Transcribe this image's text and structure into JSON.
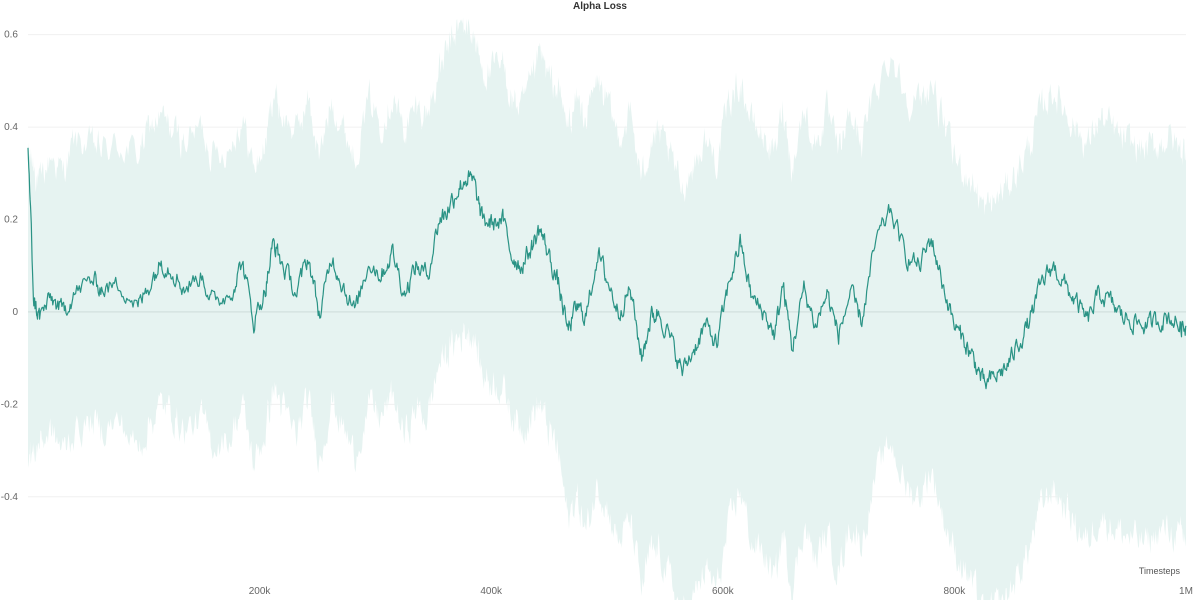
{
  "chart_data": {
    "type": "area",
    "title": "Alpha Loss",
    "xlabel": "Timesteps",
    "ylabel": "",
    "xlim": [
      0,
      1000000
    ],
    "ylim": [
      -0.565,
      0.675
    ],
    "grid": true,
    "legend": "none",
    "x_ticks": [
      {
        "value": 200000,
        "label": "200k"
      },
      {
        "value": 400000,
        "label": "400k"
      },
      {
        "value": 600000,
        "label": "600k"
      },
      {
        "value": 800000,
        "label": "800k"
      },
      {
        "value": 1000000,
        "label": "1M"
      }
    ],
    "y_ticks": [
      {
        "value": 0.6,
        "label": "0.6"
      },
      {
        "value": 0.4,
        "label": "0.4"
      },
      {
        "value": 0.2,
        "label": "0.2"
      },
      {
        "value": 0,
        "label": "0"
      },
      {
        "value": -0.2,
        "label": "-0.2"
      },
      {
        "value": -0.4,
        "label": "-0.4"
      }
    ],
    "series": [
      {
        "color": "#2a9385",
        "band_color": "#e6f3f1",
        "x": [
          0,
          5000,
          10000,
          20000,
          30000,
          40000,
          55000,
          65000,
          80000,
          95000,
          105000,
          115000,
          125000,
          135000,
          150000,
          160000,
          175000,
          185000,
          195000,
          205000,
          212000,
          220000,
          232000,
          242000,
          252000,
          262000,
          272000,
          282000,
          295000,
          305000,
          315000,
          325000,
          335000,
          345000,
          355000,
          362000,
          370000,
          378000,
          385000,
          392000,
          400000,
          410000,
          418000,
          426000,
          435000,
          442000,
          450000,
          458000,
          466000,
          474000,
          482000,
          492000,
          500000,
          510000,
          520000,
          530000,
          538000,
          545000,
          555000,
          565000,
          575000,
          585000,
          595000,
          605000,
          615000,
          625000,
          635000,
          645000,
          652000,
          660000,
          670000,
          680000,
          690000,
          700000,
          710000,
          720000,
          732000,
          745000,
          758000,
          770000,
          780000,
          790000,
          800000,
          810000,
          818000,
          826000,
          835000,
          845000,
          855000,
          865000,
          875000,
          885000,
          895000,
          905000,
          915000,
          925000,
          935000,
          945000,
          955000,
          965000,
          975000,
          985000,
          995000,
          1000000
        ],
        "y": [
          0.36,
          0.02,
          -0.01,
          0.03,
          0.0,
          0.04,
          0.07,
          0.05,
          0.06,
          0.01,
          0.06,
          0.11,
          0.09,
          0.05,
          0.08,
          0.02,
          0.04,
          0.11,
          -0.02,
          0.05,
          0.15,
          0.1,
          0.04,
          0.12,
          -0.01,
          0.12,
          0.06,
          0.0,
          0.11,
          0.08,
          0.13,
          0.04,
          0.1,
          0.08,
          0.2,
          0.22,
          0.26,
          0.29,
          0.28,
          0.2,
          0.19,
          0.2,
          0.12,
          0.1,
          0.14,
          0.18,
          0.12,
          0.06,
          -0.04,
          0.01,
          -0.01,
          0.13,
          0.07,
          0.0,
          0.05,
          -0.1,
          -0.01,
          0.0,
          -0.06,
          -0.13,
          -0.08,
          -0.03,
          -0.07,
          0.06,
          0.15,
          0.03,
          0.0,
          -0.05,
          0.06,
          -0.08,
          0.05,
          -0.03,
          0.04,
          -0.05,
          0.04,
          -0.02,
          0.15,
          0.22,
          0.12,
          0.1,
          0.16,
          0.06,
          -0.03,
          -0.07,
          -0.11,
          -0.16,
          -0.14,
          -0.12,
          -0.07,
          -0.02,
          0.06,
          0.1,
          0.06,
          0.02,
          -0.02,
          0.04,
          0.02,
          -0.01,
          -0.02,
          -0.03,
          -0.02,
          -0.01,
          -0.03,
          -0.03
        ],
        "upper": [
          0.34,
          0.32,
          0.27,
          0.34,
          0.3,
          0.37,
          0.36,
          0.35,
          0.36,
          0.34,
          0.4,
          0.42,
          0.39,
          0.37,
          0.4,
          0.34,
          0.36,
          0.42,
          0.31,
          0.36,
          0.48,
          0.42,
          0.39,
          0.46,
          0.33,
          0.46,
          0.4,
          0.34,
          0.46,
          0.41,
          0.47,
          0.39,
          0.44,
          0.43,
          0.52,
          0.56,
          0.61,
          0.62,
          0.6,
          0.52,
          0.52,
          0.53,
          0.46,
          0.44,
          0.49,
          0.56,
          0.5,
          0.48,
          0.4,
          0.46,
          0.42,
          0.5,
          0.45,
          0.38,
          0.43,
          0.28,
          0.38,
          0.38,
          0.33,
          0.27,
          0.32,
          0.37,
          0.33,
          0.45,
          0.5,
          0.41,
          0.38,
          0.34,
          0.45,
          0.31,
          0.44,
          0.36,
          0.43,
          0.34,
          0.43,
          0.37,
          0.48,
          0.56,
          0.47,
          0.45,
          0.5,
          0.41,
          0.33,
          0.3,
          0.27,
          0.22,
          0.24,
          0.27,
          0.31,
          0.36,
          0.44,
          0.48,
          0.44,
          0.4,
          0.36,
          0.42,
          0.4,
          0.37,
          0.36,
          0.35,
          0.36,
          0.38,
          0.35,
          0.35
        ],
        "lower": [
          -0.3,
          -0.31,
          -0.28,
          -0.26,
          -0.3,
          -0.26,
          -0.24,
          -0.25,
          -0.24,
          -0.3,
          -0.24,
          -0.2,
          -0.22,
          -0.26,
          -0.23,
          -0.29,
          -0.27,
          -0.2,
          -0.33,
          -0.26,
          -0.16,
          -0.21,
          -0.27,
          -0.19,
          -0.32,
          -0.19,
          -0.25,
          -0.31,
          -0.2,
          -0.23,
          -0.18,
          -0.27,
          -0.21,
          -0.23,
          -0.11,
          -0.09,
          -0.06,
          -0.04,
          -0.05,
          -0.13,
          -0.15,
          -0.16,
          -0.22,
          -0.25,
          -0.22,
          -0.2,
          -0.26,
          -0.3,
          -0.45,
          -0.4,
          -0.48,
          -0.37,
          -0.42,
          -0.5,
          -0.45,
          -0.6,
          -0.52,
          -0.52,
          -0.58,
          -0.66,
          -0.62,
          -0.56,
          -0.6,
          -0.47,
          -0.38,
          -0.5,
          -0.52,
          -0.58,
          -0.48,
          -0.6,
          -0.46,
          -0.54,
          -0.48,
          -0.56,
          -0.46,
          -0.5,
          -0.36,
          -0.28,
          -0.38,
          -0.4,
          -0.34,
          -0.44,
          -0.52,
          -0.56,
          -0.6,
          -0.66,
          -0.64,
          -0.62,
          -0.57,
          -0.51,
          -0.42,
          -0.38,
          -0.42,
          -0.46,
          -0.5,
          -0.44,
          -0.46,
          -0.48,
          -0.49,
          -0.5,
          -0.48,
          -0.47,
          -0.49,
          -0.49
        ]
      }
    ]
  }
}
